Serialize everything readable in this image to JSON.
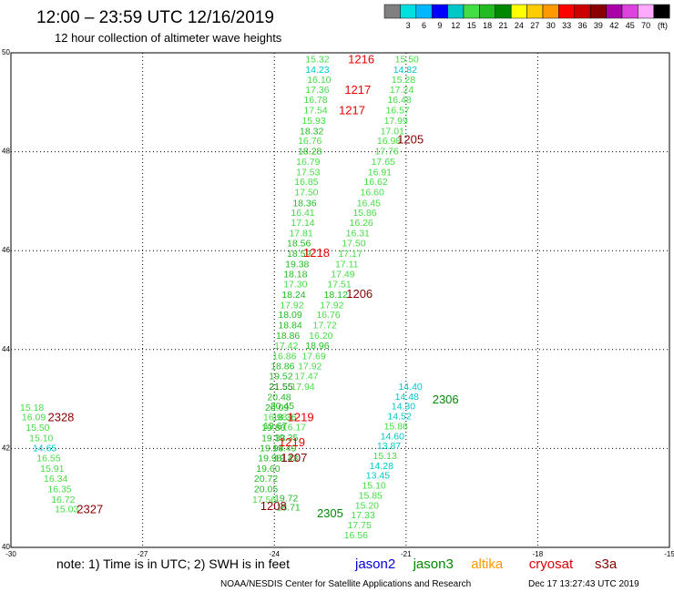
{
  "header": {
    "title": "12:00 – 23:59 UTC 12/16/2019",
    "subtitle": "12 hour collection of altimeter wave heights"
  },
  "legend": {
    "levels": [
      {
        "label": "",
        "color": "#808080"
      },
      {
        "label": "3",
        "color": "#00e0e0"
      },
      {
        "label": "6",
        "color": "#00b8ff"
      },
      {
        "label": "9",
        "color": "#0000ff"
      },
      {
        "label": "12",
        "color": "#00c8c8"
      },
      {
        "label": "15",
        "color": "#44dd44"
      },
      {
        "label": "18",
        "color": "#22bb22"
      },
      {
        "label": "21",
        "color": "#008800"
      },
      {
        "label": "24",
        "color": "#ffff00"
      },
      {
        "label": "27",
        "color": "#ffcc00"
      },
      {
        "label": "30",
        "color": "#ff9900"
      },
      {
        "label": "33",
        "color": "#ff0000"
      },
      {
        "label": "36",
        "color": "#cc0000"
      },
      {
        "label": "39",
        "color": "#880000"
      },
      {
        "label": "42",
        "color": "#aa00aa"
      },
      {
        "label": "45",
        "color": "#dd44dd"
      },
      {
        "label": "70",
        "color": "#ffaaff"
      },
      {
        "label": "",
        "color": "#000000"
      }
    ],
    "units": "(ft)"
  },
  "axes": {
    "x_ticks": [
      "-30",
      "-27",
      "-24",
      "-21",
      "-18",
      "-15"
    ],
    "y_ticks": [
      "50",
      "48",
      "46",
      "44",
      "42",
      "40"
    ]
  },
  "footer": {
    "note": "note: 1) Time is in UTC; 2) SWH is in feet",
    "satellites": [
      {
        "name": "jason2",
        "color": "#0000dd"
      },
      {
        "name": "jason3",
        "color": "#008800"
      },
      {
        "name": "altika",
        "color": "#ff9900"
      },
      {
        "name": "cryosat",
        "color": "#dd0000"
      },
      {
        "name": "s3a",
        "color": "#880000"
      }
    ],
    "credit": "NOAA/NESDIS Center for Satellite Applications and Research",
    "timestamp": "Dec 17 13:27:43 UTC 2019"
  },
  "chart_data": {
    "type": "scatter",
    "title": "12:00 – 23:59 UTC 12/16/2019",
    "subtitle": "12 hour collection of altimeter wave heights",
    "xlabel": "",
    "ylabel": "",
    "xlim": [
      -30,
      -15
    ],
    "ylim": [
      40,
      50
    ],
    "grid": true,
    "legend_position": "top-right",
    "color_scale_ft": [
      3,
      6,
      9,
      12,
      15,
      18,
      21,
      24,
      27,
      30,
      33,
      36,
      39,
      42,
      45,
      70
    ],
    "points": [
      {
        "lon": -23.02,
        "lat": 49.88,
        "swh": "15.32"
      },
      {
        "lon": -23.02,
        "lat": 49.67,
        "swh": "14.23"
      },
      {
        "lon": -22.98,
        "lat": 49.47,
        "swh": "16.10"
      },
      {
        "lon": -23.02,
        "lat": 49.26,
        "swh": "17.36"
      },
      {
        "lon": -23.06,
        "lat": 49.06,
        "swh": "16.78"
      },
      {
        "lon": -23.06,
        "lat": 48.85,
        "swh": "17.54"
      },
      {
        "lon": -23.1,
        "lat": 48.64,
        "swh": "15.93"
      },
      {
        "lon": -23.15,
        "lat": 48.43,
        "swh": "18.32"
      },
      {
        "lon": -23.19,
        "lat": 48.23,
        "swh": "16.76"
      },
      {
        "lon": -23.19,
        "lat": 48.02,
        "swh": "18.28"
      },
      {
        "lon": -23.23,
        "lat": 47.81,
        "swh": "16.79"
      },
      {
        "lon": -23.23,
        "lat": 47.6,
        "swh": "17.53"
      },
      {
        "lon": -23.27,
        "lat": 47.4,
        "swh": "16.85"
      },
      {
        "lon": -23.27,
        "lat": 47.19,
        "swh": "17.50"
      },
      {
        "lon": -23.31,
        "lat": 46.97,
        "swh": "18.36"
      },
      {
        "lon": -23.35,
        "lat": 46.78,
        "swh": "16.41"
      },
      {
        "lon": -23.35,
        "lat": 46.57,
        "swh": "17.14"
      },
      {
        "lon": -23.39,
        "lat": 46.36,
        "swh": "17.81"
      },
      {
        "lon": -23.44,
        "lat": 46.16,
        "swh": "18.56"
      },
      {
        "lon": -23.44,
        "lat": 45.95,
        "swh": "18.59"
      },
      {
        "lon": -23.48,
        "lat": 45.74,
        "swh": "19.38"
      },
      {
        "lon": -23.52,
        "lat": 45.53,
        "swh": "18.18"
      },
      {
        "lon": -23.52,
        "lat": 45.33,
        "swh": "17.30"
      },
      {
        "lon": -23.56,
        "lat": 45.12,
        "swh": "18.24"
      },
      {
        "lon": -23.6,
        "lat": 44.91,
        "swh": "17.92"
      },
      {
        "lon": -23.64,
        "lat": 44.71,
        "swh": "18.09"
      },
      {
        "lon": -23.64,
        "lat": 44.5,
        "swh": "18.84"
      },
      {
        "lon": -23.69,
        "lat": 44.29,
        "swh": "18.86"
      },
      {
        "lon": -23.73,
        "lat": 44.09,
        "swh": "17.42"
      },
      {
        "lon": -23.77,
        "lat": 43.88,
        "swh": "16.86"
      },
      {
        "lon": -23.81,
        "lat": 43.67,
        "swh": "18.86"
      },
      {
        "lon": -23.85,
        "lat": 43.47,
        "swh": "19.52"
      },
      {
        "lon": -23.85,
        "lat": 43.26,
        "swh": "21.55"
      },
      {
        "lon": -23.89,
        "lat": 43.05,
        "swh": "20.48"
      },
      {
        "lon": -23.94,
        "lat": 42.84,
        "swh": "20.09"
      },
      {
        "lon": -23.98,
        "lat": 42.64,
        "swh": "16.98"
      },
      {
        "lon": -24.02,
        "lat": 42.43,
        "swh": "19.86"
      },
      {
        "lon": -24.02,
        "lat": 42.22,
        "swh": "19.33"
      },
      {
        "lon": -24.06,
        "lat": 42.02,
        "swh": "19.94"
      },
      {
        "lon": -24.1,
        "lat": 41.81,
        "swh": "19.98"
      },
      {
        "lon": -24.14,
        "lat": 41.6,
        "swh": "19.60"
      },
      {
        "lon": -24.19,
        "lat": 41.4,
        "swh": "20.72"
      },
      {
        "lon": -24.19,
        "lat": 41.19,
        "swh": "20.05"
      },
      {
        "lon": -24.23,
        "lat": 40.98,
        "swh": "17.56"
      },
      {
        "lon": -23.73,
        "lat": 41.0,
        "swh": "19.72"
      },
      {
        "lon": -23.68,
        "lat": 40.82,
        "swh": "18.71"
      },
      {
        "lon": -23.82,
        "lat": 42.87,
        "swh": "20.45"
      },
      {
        "lon": -23.77,
        "lat": 42.64,
        "swh": "18.36"
      },
      {
        "lon": -23.55,
        "lat": 42.44,
        "swh": "16.17"
      },
      {
        "lon": -23.73,
        "lat": 42.23,
        "swh": "19.35"
      },
      {
        "lon": -23.77,
        "lat": 42.02,
        "swh": "19.49"
      },
      {
        "lon": -23.73,
        "lat": 41.81,
        "swh": "19.43"
      },
      {
        "lon": -23.98,
        "lat": 42.47,
        "swh": "19.67"
      },
      {
        "lon": -20.98,
        "lat": 49.88,
        "swh": "15.50"
      },
      {
        "lon": -21.02,
        "lat": 49.67,
        "swh": "14.82"
      },
      {
        "lon": -21.06,
        "lat": 49.47,
        "swh": "15.28"
      },
      {
        "lon": -21.1,
        "lat": 49.26,
        "swh": "17.24"
      },
      {
        "lon": -21.15,
        "lat": 49.06,
        "swh": "16.48"
      },
      {
        "lon": -21.19,
        "lat": 48.85,
        "swh": "16.57"
      },
      {
        "lon": -21.23,
        "lat": 48.64,
        "swh": "17.99"
      },
      {
        "lon": -21.31,
        "lat": 48.43,
        "swh": "17.01"
      },
      {
        "lon": -21.39,
        "lat": 48.23,
        "swh": "16.98"
      },
      {
        "lon": -21.44,
        "lat": 48.02,
        "swh": "17.76"
      },
      {
        "lon": -21.52,
        "lat": 47.81,
        "swh": "17.65"
      },
      {
        "lon": -21.6,
        "lat": 47.6,
        "swh": "16.91"
      },
      {
        "lon": -21.69,
        "lat": 47.4,
        "swh": "16.62"
      },
      {
        "lon": -21.77,
        "lat": 47.19,
        "swh": "16.60"
      },
      {
        "lon": -21.85,
        "lat": 46.97,
        "swh": "16.45"
      },
      {
        "lon": -21.94,
        "lat": 46.78,
        "swh": "15.86"
      },
      {
        "lon": -22.02,
        "lat": 46.57,
        "swh": "16.26"
      },
      {
        "lon": -22.1,
        "lat": 46.36,
        "swh": "16.31"
      },
      {
        "lon": -22.19,
        "lat": 46.16,
        "swh": "17.50"
      },
      {
        "lon": -22.27,
        "lat": 45.95,
        "swh": "17.17"
      },
      {
        "lon": -22.35,
        "lat": 45.74,
        "swh": "17.11"
      },
      {
        "lon": -22.44,
        "lat": 45.53,
        "swh": "17.49"
      },
      {
        "lon": -22.52,
        "lat": 45.33,
        "swh": "17.51"
      },
      {
        "lon": -22.6,
        "lat": 45.12,
        "swh": "18.12"
      },
      {
        "lon": -22.69,
        "lat": 44.91,
        "swh": "17.92"
      },
      {
        "lon": -22.77,
        "lat": 44.71,
        "swh": "16.76"
      },
      {
        "lon": -22.85,
        "lat": 44.5,
        "swh": "17.72"
      },
      {
        "lon": -22.94,
        "lat": 44.29,
        "swh": "16.20"
      },
      {
        "lon": -23.02,
        "lat": 44.09,
        "swh": "18.96"
      },
      {
        "lon": -23.1,
        "lat": 43.88,
        "swh": "17.69"
      },
      {
        "lon": -23.19,
        "lat": 43.67,
        "swh": "17.92"
      },
      {
        "lon": -23.27,
        "lat": 43.47,
        "swh": "17.47"
      },
      {
        "lon": -23.35,
        "lat": 43.26,
        "swh": "17.94"
      },
      {
        "lon": -20.9,
        "lat": 43.26,
        "swh": "14.40"
      },
      {
        "lon": -20.98,
        "lat": 43.06,
        "swh": "14.48"
      },
      {
        "lon": -21.06,
        "lat": 42.86,
        "swh": "14.30"
      },
      {
        "lon": -21.15,
        "lat": 42.66,
        "swh": "14.52"
      },
      {
        "lon": -21.23,
        "lat": 42.46,
        "swh": "15.86"
      },
      {
        "lon": -21.31,
        "lat": 42.26,
        "swh": "14.60"
      },
      {
        "lon": -21.39,
        "lat": 42.06,
        "swh": "13.87"
      },
      {
        "lon": -21.48,
        "lat": 41.86,
        "swh": "15.13"
      },
      {
        "lon": -21.56,
        "lat": 41.66,
        "swh": "14.28"
      },
      {
        "lon": -21.64,
        "lat": 41.46,
        "swh": "13.45"
      },
      {
        "lon": -21.73,
        "lat": 41.26,
        "swh": "15.10"
      },
      {
        "lon": -21.81,
        "lat": 41.06,
        "swh": "15.85"
      },
      {
        "lon": -21.89,
        "lat": 40.86,
        "swh": "15.20"
      },
      {
        "lon": -21.98,
        "lat": 40.66,
        "swh": "17.33"
      },
      {
        "lon": -22.06,
        "lat": 40.46,
        "swh": "17.75"
      },
      {
        "lon": -22.14,
        "lat": 40.26,
        "swh": "16.56"
      },
      {
        "lon": -29.52,
        "lat": 42.84,
        "swh": "15.18"
      },
      {
        "lon": -29.48,
        "lat": 42.64,
        "swh": "16.09"
      },
      {
        "lon": -29.39,
        "lat": 42.43,
        "swh": "15.50"
      },
      {
        "lon": -29.31,
        "lat": 42.22,
        "swh": "15.10"
      },
      {
        "lon": -29.23,
        "lat": 42.02,
        "swh": "14.65"
      },
      {
        "lon": -29.14,
        "lat": 41.81,
        "swh": "16.55"
      },
      {
        "lon": -29.06,
        "lat": 41.6,
        "swh": "15.91"
      },
      {
        "lon": -28.98,
        "lat": 41.4,
        "swh": "16.34"
      },
      {
        "lon": -28.89,
        "lat": 41.19,
        "swh": "16.35"
      },
      {
        "lon": -28.81,
        "lat": 40.98,
        "swh": "16.72"
      },
      {
        "lon": -28.73,
        "lat": 40.78,
        "swh": "15.03"
      }
    ],
    "pass_labels": [
      {
        "lon": -22.02,
        "lat": 49.88,
        "text": "1216",
        "color": "#ee0000"
      },
      {
        "lon": -22.1,
        "lat": 49.26,
        "text": "1217",
        "color": "#ee0000"
      },
      {
        "lon": -22.23,
        "lat": 48.85,
        "text": "1217",
        "color": "#ee0000"
      },
      {
        "lon": -20.9,
        "lat": 48.26,
        "text": "1205",
        "color": "#880000"
      },
      {
        "lon": -23.04,
        "lat": 45.97,
        "text": "1218",
        "color": "#ee0000"
      },
      {
        "lon": -22.06,
        "lat": 45.14,
        "text": "1206",
        "color": "#880000"
      },
      {
        "lon": -20.1,
        "lat": 43.0,
        "text": "2306",
        "color": "#008800"
      },
      {
        "lon": -23.4,
        "lat": 42.64,
        "text": "1219",
        "color": "#ee0000"
      },
      {
        "lon": -23.6,
        "lat": 42.14,
        "text": "1219",
        "color": "#ee0000"
      },
      {
        "lon": -23.55,
        "lat": 41.82,
        "text": "1207",
        "color": "#880000"
      },
      {
        "lon": -24.02,
        "lat": 40.85,
        "text": "1208",
        "color": "#880000"
      },
      {
        "lon": -22.73,
        "lat": 40.7,
        "text": "2305",
        "color": "#008800"
      },
      {
        "lon": -28.86,
        "lat": 42.64,
        "text": "2328",
        "color": "#880000"
      },
      {
        "lon": -28.2,
        "lat": 40.78,
        "text": "2327",
        "color": "#880000"
      }
    ]
  }
}
